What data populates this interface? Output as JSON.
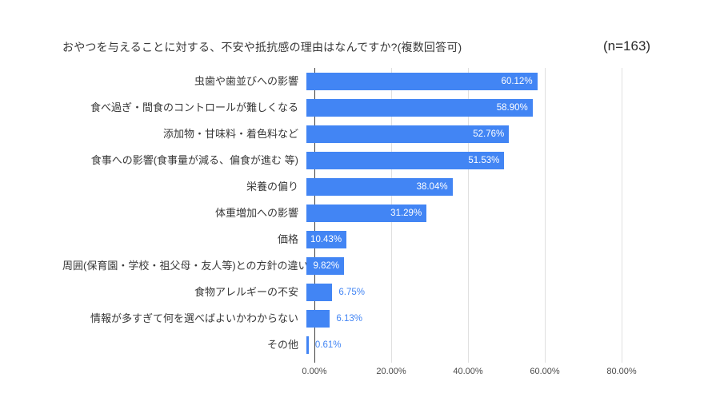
{
  "header": {
    "title": "おやつを与えることに対する、不安や抵抗感の理由はなんですか?(複数回答可)",
    "sample_size": "(n=163)"
  },
  "colors": {
    "bar": "#4285f4",
    "value_inside": "#ffffff",
    "value_outside": "#4285f4",
    "gridline": "#e0e0e0",
    "axis_line": "#424242",
    "text": "#383838"
  },
  "chart_data": {
    "type": "bar",
    "orientation": "horizontal",
    "title": "おやつを与えることに対する、不安や抵抗感の理由はなんですか?(複数回答可)",
    "sample_size_note": "(n=163)",
    "n": 163,
    "categories": [
      "虫歯や歯並びへの影響",
      "食べ過ぎ・間食のコントロールが難しくなる",
      "添加物・甘味料・着色料など",
      "食事への影響(食事量が減る、偏食が進む 等)",
      "栄養の偏り",
      "体重増加への影響",
      "価格",
      "周囲(保育園・学校・祖父母・友人等)との方針の違い",
      "食物アレルギーの不安",
      "情報が多すぎて何を選べばよいかわからない",
      "その他"
    ],
    "values": [
      60.12,
      58.9,
      52.76,
      51.53,
      38.04,
      31.29,
      10.43,
      9.82,
      6.75,
      6.13,
      0.61
    ],
    "value_labels": [
      "60.12%",
      "58.90%",
      "52.76%",
      "51.53%",
      "38.04%",
      "31.29%",
      "10.43%",
      "9.82%",
      "6.75%",
      "6.13%",
      "0.61%"
    ],
    "xlabel": "",
    "ylabel": "",
    "xlim": [
      0,
      93.75
    ],
    "x_ticks": [
      0,
      20,
      40,
      60,
      80
    ],
    "x_tick_labels": [
      "0.00%",
      "20.00%",
      "40.00%",
      "60.00%",
      "80.00%"
    ],
    "grid": "vertical-only",
    "legend": "none"
  }
}
